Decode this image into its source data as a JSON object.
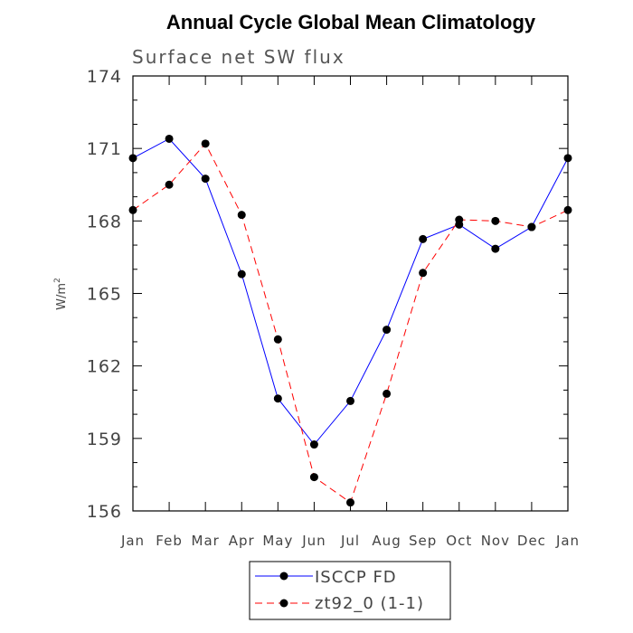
{
  "chart_data": {
    "type": "line",
    "title": "Annual Cycle Global Mean Climatology",
    "subtitle": "Surface net SW flux",
    "ylabel": "W/m",
    "ylabel_superscript": "2",
    "xlabel": "",
    "categories": [
      "Jan",
      "Feb",
      "Mar",
      "Apr",
      "May",
      "Jun",
      "Jul",
      "Aug",
      "Sep",
      "Oct",
      "Nov",
      "Dec",
      "Jan"
    ],
    "ylim": [
      156,
      174
    ],
    "yticks": [
      156,
      159,
      162,
      165,
      168,
      171,
      174
    ],
    "y_minor_step": 1,
    "grid": false,
    "legend_position": "bottom",
    "series": [
      {
        "name": "ISCCP FD",
        "color": "#0000ff",
        "dash": "solid",
        "marker": "filled-circle",
        "values": [
          170.6,
          171.4,
          169.75,
          165.8,
          160.65,
          158.75,
          160.55,
          163.5,
          167.25,
          167.85,
          166.85,
          167.75,
          170.6
        ]
      },
      {
        "name": "zt92_0 (1-1)",
        "color": "#ff0000",
        "dash": "dashed",
        "marker": "filled-circle",
        "values": [
          168.45,
          169.5,
          171.2,
          168.25,
          163.1,
          157.4,
          156.35,
          160.85,
          165.85,
          168.05,
          168.0,
          167.75,
          168.45
        ]
      }
    ]
  }
}
